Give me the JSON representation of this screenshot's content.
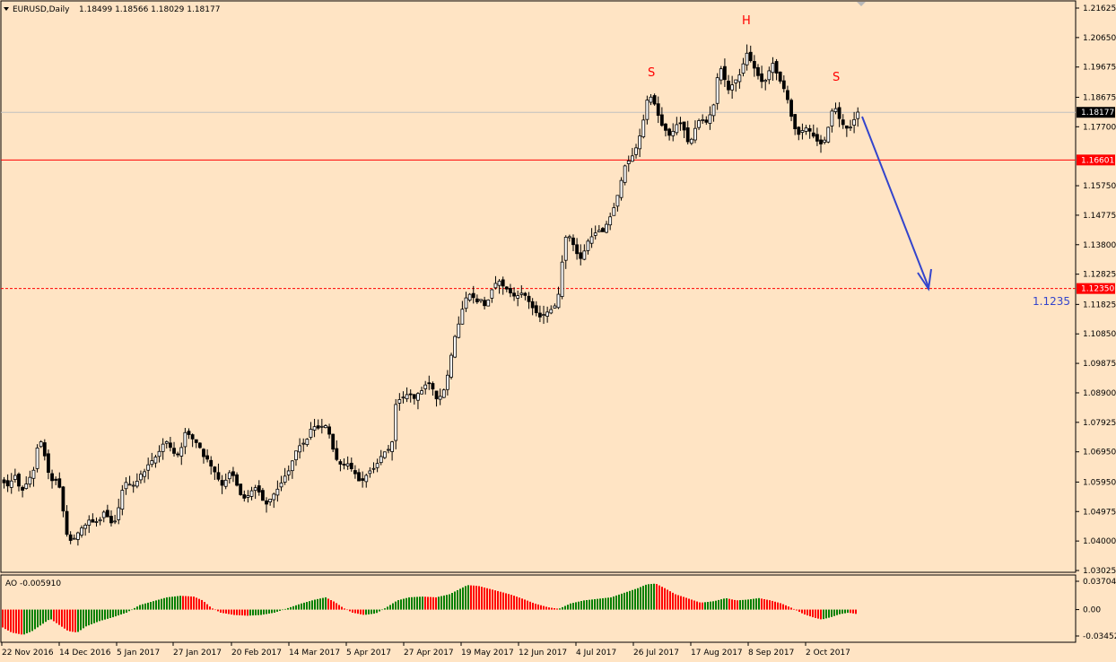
{
  "header": {
    "symbol": "EURUSD,Daily",
    "ohlc": "1.18499 1.18566 1.18029 1.18177"
  },
  "indicator": {
    "label": "AO -0.005910"
  },
  "annotations": {
    "left_shoulder": "S",
    "head": "H",
    "right_shoulder": "S",
    "target_label": "1.1235"
  },
  "colors": {
    "background": "#ffe4c4",
    "candle": "#000000",
    "level_line": "#ff0000",
    "arrow": "#3344cc",
    "ao_up": "#008000",
    "ao_down": "#ff0000",
    "pattern_label": "#ff0000"
  },
  "chart_data": [
    {
      "type": "candlestick",
      "title": "EURUSD,Daily",
      "ylim": [
        1.03025,
        1.21625
      ],
      "y_ticks": [
        "1.21625",
        "1.20650",
        "1.19675",
        "1.18675",
        "1.17700",
        "1.16601",
        "1.15750",
        "1.14775",
        "1.13800",
        "1.12825",
        "1.12350",
        "1.11825",
        "1.10850",
        "1.09875",
        "1.08900",
        "1.07925",
        "1.06950",
        "1.05950",
        "1.04975",
        "1.04000",
        "1.03025"
      ],
      "x_labels": [
        "22 Nov 2016",
        "14 Dec 2016",
        "5 Jan 2017",
        "27 Jan 2017",
        "20 Feb 2017",
        "14 Mar 2017",
        "5 Apr 2017",
        "27 Apr 2017",
        "19 May 2017",
        "12 Jun 2017",
        "4 Jul 2017",
        "26 Jul 2017",
        "17 Aug 2017",
        "8 Sep 2017",
        "2 Oct 2017"
      ],
      "current_price": "1.18177",
      "horizontal_levels": [
        {
          "value": 1.16601,
          "label": "1.16601",
          "style": "solid"
        },
        {
          "value": 1.1235,
          "label": "1.12350",
          "style": "dashed"
        }
      ],
      "path": [
        [
          0,
          1.06
        ],
        [
          8,
          1.058
        ],
        [
          15,
          1.062
        ],
        [
          22,
          1.056
        ],
        [
          30,
          1.06
        ],
        [
          37,
          1.064
        ],
        [
          42,
          1.075
        ],
        [
          47,
          1.07
        ],
        [
          52,
          1.063
        ],
        [
          58,
          1.059
        ],
        [
          63,
          1.061
        ],
        [
          68,
          1.052
        ],
        [
          72,
          1.043
        ],
        [
          76,
          1.04
        ],
        [
          82,
          1.041
        ],
        [
          88,
          1.044
        ],
        [
          93,
          1.045
        ],
        [
          98,
          1.047
        ],
        [
          103,
          1.046
        ],
        [
          110,
          1.047
        ],
        [
          115,
          1.05
        ],
        [
          120,
          1.047
        ],
        [
          125,
          1.045
        ],
        [
          130,
          1.05
        ],
        [
          135,
          1.057
        ],
        [
          140,
          1.06
        ],
        [
          145,
          1.058
        ],
        [
          150,
          1.059
        ],
        [
          155,
          1.062
        ],
        [
          160,
          1.063
        ],
        [
          165,
          1.066
        ],
        [
          170,
          1.067
        ],
        [
          175,
          1.069
        ],
        [
          180,
          1.072
        ],
        [
          185,
          1.073
        ],
        [
          190,
          1.07
        ],
        [
          195,
          1.068
        ],
        [
          200,
          1.07
        ],
        [
          205,
          1.076
        ],
        [
          210,
          1.075
        ],
        [
          215,
          1.073
        ],
        [
          220,
          1.072
        ],
        [
          225,
          1.068
        ],
        [
          230,
          1.067
        ],
        [
          235,
          1.064
        ],
        [
          240,
          1.062
        ],
        [
          245,
          1.058
        ],
        [
          250,
          1.06
        ],
        [
          255,
          1.063
        ],
        [
          260,
          1.061
        ],
        [
          265,
          1.056
        ],
        [
          270,
          1.054
        ],
        [
          275,
          1.055
        ],
        [
          280,
          1.057
        ],
        [
          285,
          1.058
        ],
        [
          290,
          1.054
        ],
        [
          295,
          1.052
        ],
        [
          300,
          1.054
        ],
        [
          305,
          1.056
        ],
        [
          310,
          1.058
        ],
        [
          315,
          1.061
        ],
        [
          320,
          1.063
        ],
        [
          325,
          1.067
        ],
        [
          330,
          1.071
        ],
        [
          335,
          1.072
        ],
        [
          340,
          1.073
        ],
        [
          345,
          1.077
        ],
        [
          350,
          1.078
        ],
        [
          355,
          1.077
        ],
        [
          360,
          1.079
        ],
        [
          365,
          1.076
        ],
        [
          370,
          1.07
        ],
        [
          375,
          1.066
        ],
        [
          380,
          1.065
        ],
        [
          385,
          1.066
        ],
        [
          390,
          1.064
        ],
        [
          395,
          1.062
        ],
        [
          400,
          1.059
        ],
        [
          405,
          1.061
        ],
        [
          410,
          1.063
        ],
        [
          415,
          1.064
        ],
        [
          420,
          1.066
        ],
        [
          425,
          1.069
        ],
        [
          430,
          1.07
        ],
        [
          435,
          1.071
        ],
        [
          440,
          1.086
        ],
        [
          445,
          1.087
        ],
        [
          450,
          1.088
        ],
        [
          455,
          1.089
        ],
        [
          460,
          1.087
        ],
        [
          465,
          1.089
        ],
        [
          470,
          1.09
        ],
        [
          475,
          1.093
        ],
        [
          480,
          1.091
        ],
        [
          485,
          1.087
        ],
        [
          490,
          1.088
        ],
        [
          495,
          1.091
        ],
        [
          500,
          1.099
        ],
        [
          505,
          1.107
        ],
        [
          510,
          1.112
        ],
        [
          515,
          1.118
        ],
        [
          520,
          1.122
        ],
        [
          525,
          1.121
        ],
        [
          530,
          1.119
        ],
        [
          535,
          1.12
        ],
        [
          540,
          1.117
        ],
        [
          545,
          1.122
        ],
        [
          550,
          1.125
        ],
        [
          555,
          1.126
        ],
        [
          560,
          1.124
        ],
        [
          565,
          1.123
        ],
        [
          570,
          1.121
        ],
        [
          575,
          1.121
        ],
        [
          580,
          1.122
        ],
        [
          585,
          1.121
        ],
        [
          590,
          1.118
        ],
        [
          595,
          1.116
        ],
        [
          600,
          1.114
        ],
        [
          605,
          1.115
        ],
        [
          610,
          1.116
        ],
        [
          615,
          1.117
        ],
        [
          620,
          1.119
        ],
        [
          625,
          1.132
        ],
        [
          630,
          1.142
        ],
        [
          635,
          1.14
        ],
        [
          640,
          1.136
        ],
        [
          645,
          1.133
        ],
        [
          650,
          1.136
        ],
        [
          655,
          1.14
        ],
        [
          660,
          1.141
        ],
        [
          665,
          1.143
        ],
        [
          670,
          1.142
        ],
        [
          675,
          1.145
        ],
        [
          680,
          1.148
        ],
        [
          685,
          1.152
        ],
        [
          690,
          1.158
        ],
        [
          695,
          1.164
        ],
        [
          700,
          1.166
        ],
        [
          705,
          1.168
        ],
        [
          710,
          1.172
        ],
        [
          715,
          1.178
        ],
        [
          720,
          1.186
        ],
        [
          725,
          1.187
        ],
        [
          730,
          1.183
        ],
        [
          735,
          1.178
        ],
        [
          740,
          1.176
        ],
        [
          745,
          1.174
        ],
        [
          750,
          1.176
        ],
        [
          755,
          1.179
        ],
        [
          760,
          1.177
        ],
        [
          765,
          1.172
        ],
        [
          770,
          1.173
        ],
        [
          775,
          1.178
        ],
        [
          780,
          1.18
        ],
        [
          785,
          1.178
        ],
        [
          790,
          1.181
        ],
        [
          795,
          1.185
        ],
        [
          800,
          1.198
        ],
        [
          805,
          1.194
        ],
        [
          810,
          1.189
        ],
        [
          815,
          1.191
        ],
        [
          820,
          1.193
        ],
        [
          825,
          1.195
        ],
        [
          830,
          1.202
        ],
        [
          835,
          1.199
        ],
        [
          840,
          1.196
        ],
        [
          845,
          1.193
        ],
        [
          850,
          1.191
        ],
        [
          855,
          1.195
        ],
        [
          860,
          1.198
        ],
        [
          865,
          1.194
        ],
        [
          870,
          1.191
        ],
        [
          875,
          1.188
        ],
        [
          880,
          1.181
        ],
        [
          885,
          1.176
        ],
        [
          890,
          1.174
        ],
        [
          895,
          1.177
        ],
        [
          900,
          1.176
        ],
        [
          905,
          1.174
        ],
        [
          910,
          1.172
        ],
        [
          915,
          1.171
        ],
        [
          920,
          1.174
        ],
        [
          925,
          1.182
        ],
        [
          930,
          1.183
        ],
        [
          935,
          1.179
        ],
        [
          940,
          1.177
        ],
        [
          945,
          1.176
        ],
        [
          950,
          1.179
        ],
        [
          955,
          1.182
        ]
      ]
    },
    {
      "type": "bar",
      "title": "AO -0.005910",
      "ylim": [
        -0.034526,
        0.037047
      ],
      "y_ticks": [
        "0.037047",
        "0.00",
        "-0.034526"
      ],
      "up_color": "#008000",
      "down_color": "#ff0000",
      "path": [
        [
          0,
          -0.022
        ],
        [
          12,
          -0.03
        ],
        [
          25,
          -0.033
        ],
        [
          35,
          -0.028
        ],
        [
          45,
          -0.02
        ],
        [
          55,
          -0.012
        ],
        [
          65,
          -0.02
        ],
        [
          75,
          -0.028
        ],
        [
          85,
          -0.03
        ],
        [
          95,
          -0.022
        ],
        [
          110,
          -0.015
        ],
        [
          125,
          -0.01
        ],
        [
          140,
          -0.004
        ],
        [
          155,
          0.006
        ],
        [
          170,
          0.011
        ],
        [
          185,
          0.016
        ],
        [
          200,
          0.018
        ],
        [
          215,
          0.017
        ],
        [
          225,
          0.012
        ],
        [
          235,
          0.002
        ],
        [
          245,
          -0.004
        ],
        [
          260,
          -0.007
        ],
        [
          275,
          -0.008
        ],
        [
          290,
          -0.007
        ],
        [
          305,
          -0.004
        ],
        [
          320,
          0.002
        ],
        [
          335,
          0.008
        ],
        [
          350,
          0.013
        ],
        [
          362,
          0.016
        ],
        [
          372,
          0.01
        ],
        [
          382,
          0.002
        ],
        [
          392,
          -0.004
        ],
        [
          405,
          -0.007
        ],
        [
          418,
          -0.005
        ],
        [
          430,
          0.003
        ],
        [
          442,
          0.012
        ],
        [
          455,
          0.016
        ],
        [
          470,
          0.017
        ],
        [
          485,
          0.016
        ],
        [
          500,
          0.02
        ],
        [
          510,
          0.026
        ],
        [
          520,
          0.032
        ],
        [
          532,
          0.031
        ],
        [
          545,
          0.027
        ],
        [
          558,
          0.023
        ],
        [
          570,
          0.019
        ],
        [
          582,
          0.014
        ],
        [
          595,
          0.008
        ],
        [
          610,
          0.003
        ],
        [
          622,
          0.001
        ],
        [
          635,
          0.008
        ],
        [
          650,
          0.012
        ],
        [
          665,
          0.014
        ],
        [
          680,
          0.016
        ],
        [
          695,
          0.022
        ],
        [
          710,
          0.028
        ],
        [
          720,
          0.033
        ],
        [
          730,
          0.034
        ],
        [
          740,
          0.028
        ],
        [
          752,
          0.02
        ],
        [
          765,
          0.015
        ],
        [
          780,
          0.009
        ],
        [
          795,
          0.011
        ],
        [
          808,
          0.015
        ],
        [
          820,
          0.012
        ],
        [
          832,
          0.013
        ],
        [
          845,
          0.015
        ],
        [
          858,
          0.012
        ],
        [
          870,
          0.008
        ],
        [
          882,
          0.002
        ],
        [
          895,
          -0.006
        ],
        [
          905,
          -0.01
        ],
        [
          915,
          -0.013
        ],
        [
          925,
          -0.01
        ],
        [
          935,
          -0.006
        ],
        [
          945,
          -0.004
        ],
        [
          955,
          -0.006
        ]
      ]
    }
  ]
}
